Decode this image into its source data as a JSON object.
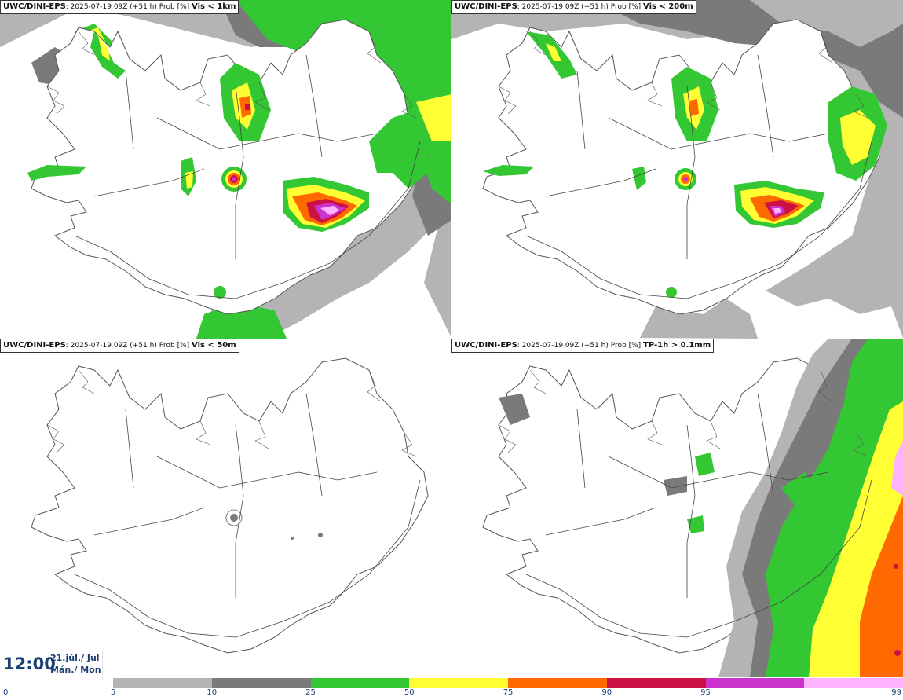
{
  "panels": [
    {
      "model": "UWC/DINI-EPS",
      "info": ": 2025-07-19 09Z (+51 h) Prob [%]",
      "param": "Vis < 1km"
    },
    {
      "model": "UWC/DINI-EPS",
      "info": ": 2025-07-19 09Z (+51 h) Prob [%]",
      "param": "Vis < 200m"
    },
    {
      "model": "UWC/DINI-EPS",
      "info": ": 2025-07-19 09Z (+51 h) Prob [%]",
      "param": "Vis < 50m"
    },
    {
      "model": "UWC/DINI-EPS",
      "info": ": 2025-07-19 09Z (+51 h) Prob [%]",
      "param": "TP-1h > 0.1mm"
    }
  ],
  "time": "12:00",
  "date_line1": "21.júl./ Jul",
  "date_line2": "Mán./ Mon",
  "colorbar": {
    "ticks": [
      "0",
      "5",
      "10",
      "25",
      "50",
      "75",
      "90",
      "95",
      "99"
    ],
    "colors": [
      "#b4b4b4",
      "#7a7a7a",
      "#33c733",
      "#ffff33",
      "#ff6a00",
      "#cc1044",
      "#cc33cc",
      "#ffb3ff"
    ]
  }
}
